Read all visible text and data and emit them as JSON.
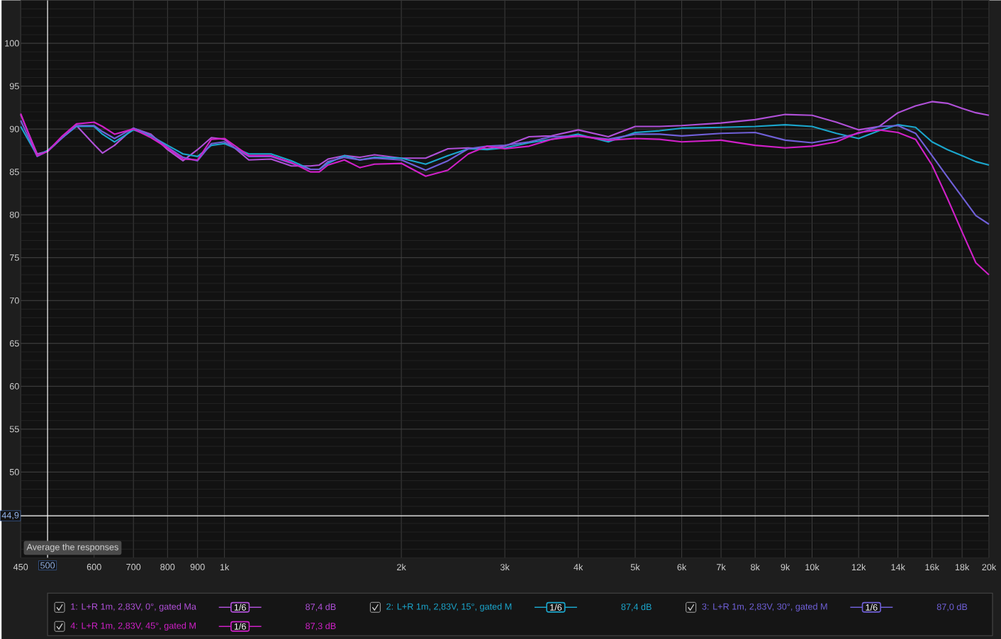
{
  "chart_data": {
    "type": "line",
    "x": [
      450,
      480,
      500,
      530,
      560,
      600,
      620,
      650,
      700,
      750,
      800,
      850,
      900,
      950,
      1000,
      1100,
      1200,
      1300,
      1400,
      1450,
      1500,
      1600,
      1700,
      1800,
      2000,
      2200,
      2400,
      2600,
      2800,
      3000,
      3300,
      3600,
      4000,
      4500,
      5000,
      5500,
      6000,
      7000,
      8000,
      9000,
      10000,
      11000,
      12000,
      13000,
      14000,
      15000,
      16000,
      17000,
      18000,
      19000,
      20000
    ],
    "series": [
      {
        "name": "1: L+R 1m, 2,83V, 0°, gated Ma",
        "color": "#b050d8",
        "values": [
          91.7,
          87.1,
          87.4,
          89.0,
          90.4,
          88.2,
          87.2,
          88.1,
          90.1,
          89.4,
          87.6,
          86.3,
          87.6,
          89.0,
          88.8,
          86.4,
          86.5,
          85.7,
          85.7,
          85.8,
          86.5,
          86.9,
          86.7,
          87.0,
          86.6,
          86.6,
          87.7,
          87.8,
          87.7,
          88.0,
          89.1,
          89.2,
          89.9,
          89.1,
          90.3,
          90.3,
          90.4,
          90.7,
          91.1,
          91.7,
          91.6,
          90.8,
          89.9,
          90.3,
          91.9,
          92.7,
          93.2,
          93.0,
          92.4,
          91.9,
          91.6
        ]
      },
      {
        "name": "2: L+R 1m, 2,83V, 15°, gated M",
        "color": "#1ba6cc",
        "values": [
          90.3,
          86.9,
          87.5,
          89.0,
          90.3,
          90.3,
          89.4,
          88.5,
          89.9,
          89.2,
          88.1,
          87.1,
          86.8,
          88.1,
          88.3,
          87.1,
          87.1,
          86.3,
          85.3,
          85.3,
          86.0,
          86.9,
          86.4,
          86.7,
          86.6,
          85.9,
          86.9,
          87.7,
          87.6,
          87.8,
          88.4,
          88.8,
          89.4,
          88.5,
          89.6,
          89.8,
          90.1,
          90.2,
          90.3,
          90.5,
          90.3,
          89.5,
          88.9,
          89.8,
          90.5,
          90.2,
          88.5,
          87.6,
          86.9,
          86.2,
          85.8
        ]
      },
      {
        "name": "3: L+R 1m, 2,83V, 30°, gated M",
        "color": "#7060d8",
        "values": [
          91.0,
          86.8,
          87.4,
          89.0,
          90.4,
          90.4,
          89.7,
          88.9,
          90.1,
          89.3,
          87.9,
          86.7,
          86.3,
          88.3,
          88.5,
          86.8,
          86.8,
          86.0,
          85.3,
          85.3,
          86.2,
          86.7,
          86.4,
          86.6,
          86.4,
          85.2,
          86.3,
          87.7,
          88.0,
          88.1,
          88.5,
          89.1,
          89.2,
          88.8,
          89.4,
          89.4,
          89.2,
          89.5,
          89.6,
          88.7,
          88.4,
          88.9,
          89.5,
          90.3,
          90.4,
          89.5,
          86.9,
          84.4,
          82.1,
          79.9,
          78.9
        ]
      },
      {
        "name": "4: L+R 1m, 2,83V, 45°, gated M",
        "color": "#d020c8",
        "values": [
          91.8,
          86.9,
          87.4,
          89.2,
          90.6,
          90.8,
          90.3,
          89.4,
          90.0,
          89.0,
          87.8,
          86.5,
          86.4,
          88.8,
          88.9,
          86.9,
          86.9,
          86.1,
          85.0,
          85.0,
          85.8,
          86.4,
          85.5,
          85.9,
          86.0,
          84.5,
          85.2,
          87.1,
          88.0,
          87.7,
          88.0,
          88.8,
          89.2,
          88.7,
          88.9,
          88.8,
          88.5,
          88.7,
          88.1,
          87.8,
          88.0,
          88.5,
          89.6,
          89.9,
          89.6,
          88.8,
          85.8,
          81.9,
          78.0,
          74.4,
          73.0
        ]
      }
    ],
    "log": "x",
    "xlim": [
      450,
      20000
    ],
    "ylim": [
      40,
      105
    ],
    "xticks": [
      450,
      600,
      700,
      800,
      900,
      {
        "value": 1000,
        "label": "1k"
      },
      {
        "value": 2000,
        "label": "2k"
      },
      {
        "value": 3000,
        "label": "3k"
      },
      {
        "value": 4000,
        "label": "4k"
      },
      {
        "value": 5000,
        "label": "5k"
      },
      {
        "value": 6000,
        "label": "6k"
      },
      {
        "value": 7000,
        "label": "7k"
      },
      {
        "value": 8000,
        "label": "8k"
      },
      {
        "value": 9000,
        "label": "9k"
      },
      {
        "value": 10000,
        "label": "10k"
      },
      {
        "value": 12000,
        "label": "12k"
      },
      {
        "value": 14000,
        "label": "14k"
      },
      {
        "value": 16000,
        "label": "16k"
      },
      {
        "value": 18000,
        "label": "18k"
      },
      {
        "value": 20000,
        "label": "20k"
      }
    ],
    "yticks": [
      50,
      55,
      60,
      65,
      70,
      75,
      80,
      85,
      90,
      95,
      100
    ],
    "grid": true,
    "legend": "bottom",
    "ref_lines": [
      {
        "axis": "x",
        "value": 500,
        "label": "500",
        "color": "#ffffff"
      },
      {
        "axis": "y",
        "value": 44.9,
        "label": "44,9",
        "color": "#ffffff"
      }
    ],
    "annotations": [
      "Average the responses",
      "1/6",
      "87,4 dB",
      "1/6",
      "87,4 dB",
      "1/6",
      "87,0 dB",
      "1/6",
      "87,3 dB"
    ]
  }
}
